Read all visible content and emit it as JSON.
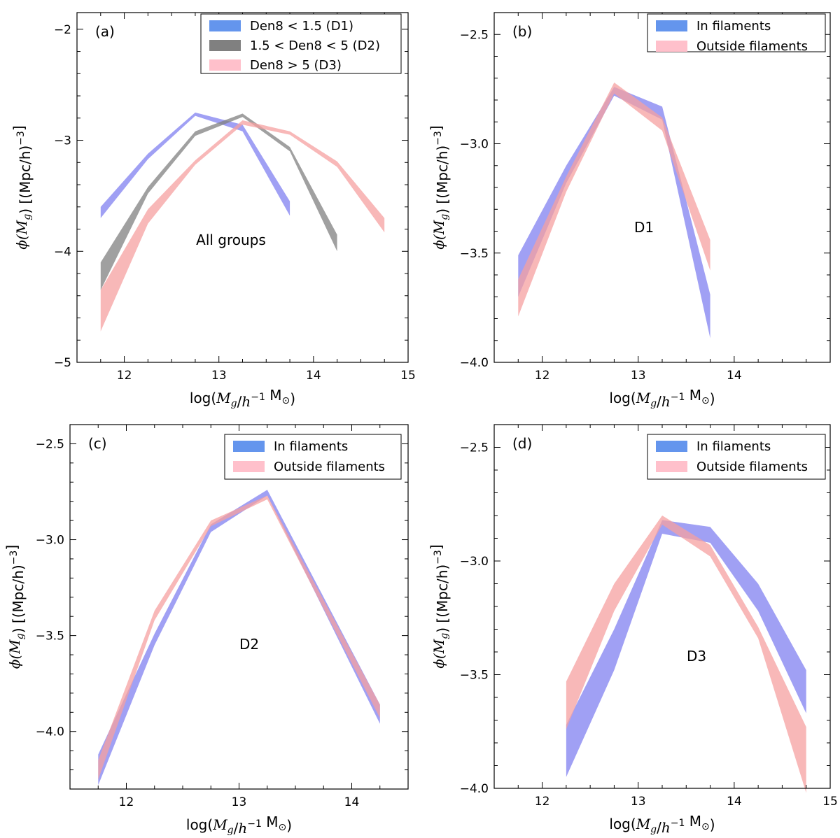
{
  "chart_data": [
    {
      "type": "area",
      "panel_label": "(a)",
      "annotation": "All groups",
      "xlabel": "log(M_g/h^-1 M_sun)",
      "ylabel": "phi(M_g) [(Mpc/h)^-3]",
      "xlim": [
        11.5,
        15
      ],
      "ylim": [
        -5,
        -1.85
      ],
      "xticks": [
        12,
        13,
        14,
        15
      ],
      "xtick_labels": [
        "12",
        "13",
        "14",
        "15"
      ],
      "yticks": [
        -5,
        -4,
        -3,
        -2
      ],
      "ytick_labels": [
        "−5",
        "−4",
        "−3",
        "−2"
      ],
      "legend": "top-right",
      "series": [
        {
          "name": "Den8 < 1.5 (D1)",
          "color": "#8080f0",
          "legend_color": "#6495ed",
          "x": [
            11.75,
            12.25,
            12.75,
            13.25,
            13.75
          ],
          "lower": [
            -3.7,
            -3.17,
            -2.78,
            -2.92,
            -3.68
          ],
          "upper": [
            -3.6,
            -3.12,
            -2.75,
            -2.86,
            -3.55
          ]
        },
        {
          "name": "1.5 < Den8 < 5 (D2)",
          "color": "#808080",
          "legend_color": "#808080",
          "x": [
            11.75,
            12.25,
            12.75,
            13.25,
            13.75,
            14.25
          ],
          "lower": [
            -4.35,
            -3.48,
            -2.96,
            -2.79,
            -3.1,
            -4.0
          ],
          "upper": [
            -4.1,
            -3.42,
            -2.92,
            -2.76,
            -3.06,
            -3.85
          ]
        },
        {
          "name": "Den8 > 5 (D3)",
          "color": "#f5a0a0",
          "legend_color": "#ffc0cb",
          "x": [
            11.75,
            12.25,
            12.75,
            13.25,
            13.75,
            14.25,
            14.75
          ],
          "lower": [
            -4.72,
            -3.75,
            -3.22,
            -2.86,
            -2.95,
            -3.24,
            -3.83
          ],
          "upper": [
            -4.35,
            -3.62,
            -3.18,
            -2.82,
            -2.92,
            -3.19,
            -3.7
          ]
        }
      ]
    },
    {
      "type": "area",
      "panel_label": "(b)",
      "annotation": "D1",
      "xlabel": "log(M_g/h^-1 M_sun)",
      "ylabel": "phi(M_g) [(Mpc/h)^-3]",
      "xlim": [
        11.5,
        15
      ],
      "ylim": [
        -4,
        -2.4
      ],
      "xticks": [
        12,
        13,
        14
      ],
      "xtick_labels": [
        "12",
        "13",
        "14"
      ],
      "yticks": [
        -4.0,
        -3.5,
        -3.0,
        -2.5
      ],
      "ytick_labels": [
        "−4.0",
        "−3.5",
        "−3.0",
        "−2.5"
      ],
      "legend": "top-right",
      "series": [
        {
          "name": "In filaments",
          "color": "#8080f0",
          "legend_color": "#6495ed",
          "x": [
            11.75,
            12.25,
            12.75,
            13.25,
            13.75
          ],
          "lower": [
            -3.7,
            -3.18,
            -2.78,
            -2.89,
            -3.89
          ],
          "upper": [
            -3.51,
            -3.1,
            -2.74,
            -2.83,
            -3.69
          ]
        },
        {
          "name": "Outside filaments",
          "color": "#f5a0a0",
          "legend_color": "#ffc0cb",
          "x": [
            11.75,
            12.25,
            12.75,
            13.25,
            13.75
          ],
          "lower": [
            -3.79,
            -3.22,
            -2.77,
            -2.94,
            -3.58
          ],
          "upper": [
            -3.62,
            -3.15,
            -2.72,
            -2.88,
            -3.44
          ]
        }
      ]
    },
    {
      "type": "area",
      "panel_label": "(c)",
      "annotation": "D2",
      "xlabel": "log(M_g/h^-1 M_sun)",
      "ylabel": "phi(M_g) [(Mpc/h)^-3]",
      "xlim": [
        11.5,
        14.5
      ],
      "ylim": [
        -4.3,
        -2.4
      ],
      "xticks": [
        12,
        13,
        14
      ],
      "xtick_labels": [
        "12",
        "13",
        "14"
      ],
      "yticks": [
        -4.0,
        -3.5,
        -3.0,
        -2.5
      ],
      "ytick_labels": [
        "−4.0",
        "−3.5",
        "−3.0",
        "−2.5"
      ],
      "legend": "top-right",
      "series": [
        {
          "name": "In filaments",
          "color": "#8080f0",
          "legend_color": "#6495ed",
          "x": [
            11.75,
            12.25,
            12.75,
            13.25,
            14.25
          ],
          "lower": [
            -4.28,
            -3.55,
            -2.96,
            -2.77,
            -3.96
          ],
          "upper": [
            -4.12,
            -3.49,
            -2.92,
            -2.74,
            -3.86
          ]
        },
        {
          "name": "Outside filaments",
          "color": "#f5a0a0",
          "legend_color": "#ffc0cb",
          "x": [
            11.75,
            12.25,
            12.75,
            13.25,
            14.25
          ],
          "lower": [
            -4.25,
            -3.42,
            -2.93,
            -2.79,
            -3.93
          ],
          "upper": [
            -4.15,
            -3.37,
            -2.9,
            -2.77,
            -3.86
          ]
        }
      ]
    },
    {
      "type": "area",
      "panel_label": "(d)",
      "annotation": "D3",
      "xlabel": "log(M_g/h^-1 M_sun)",
      "ylabel": "phi(M_g) [(Mpc/h)^-3]",
      "xlim": [
        11.5,
        15
      ],
      "ylim": [
        -4,
        -2.4
      ],
      "xticks": [
        12,
        13,
        14,
        15
      ],
      "xtick_labels": [
        "12",
        "13",
        "14",
        "15"
      ],
      "yticks": [
        -4.0,
        -3.5,
        -3.0,
        -2.5
      ],
      "ytick_labels": [
        "−4.0",
        "−3.5",
        "−3.0",
        "−2.5"
      ],
      "legend": "top-right",
      "series": [
        {
          "name": "In filaments",
          "color": "#8080f0",
          "legend_color": "#6495ed",
          "x": [
            12.25,
            12.75,
            13.25,
            13.75,
            14.25,
            14.75
          ],
          "lower": [
            -3.95,
            -3.48,
            -2.88,
            -2.92,
            -3.22,
            -3.67
          ],
          "upper": [
            -3.72,
            -3.3,
            -2.82,
            -2.85,
            -3.1,
            -3.48
          ]
        },
        {
          "name": "Outside filaments",
          "color": "#f5a0a0",
          "legend_color": "#ffc0cb",
          "x": [
            12.25,
            12.75,
            13.25,
            13.75,
            14.25,
            14.75
          ],
          "lower": [
            -3.74,
            -3.22,
            -2.84,
            -2.98,
            -3.34,
            -4.02
          ],
          "upper": [
            -3.53,
            -3.1,
            -2.8,
            -2.93,
            -3.29,
            -3.73
          ]
        }
      ]
    }
  ]
}
